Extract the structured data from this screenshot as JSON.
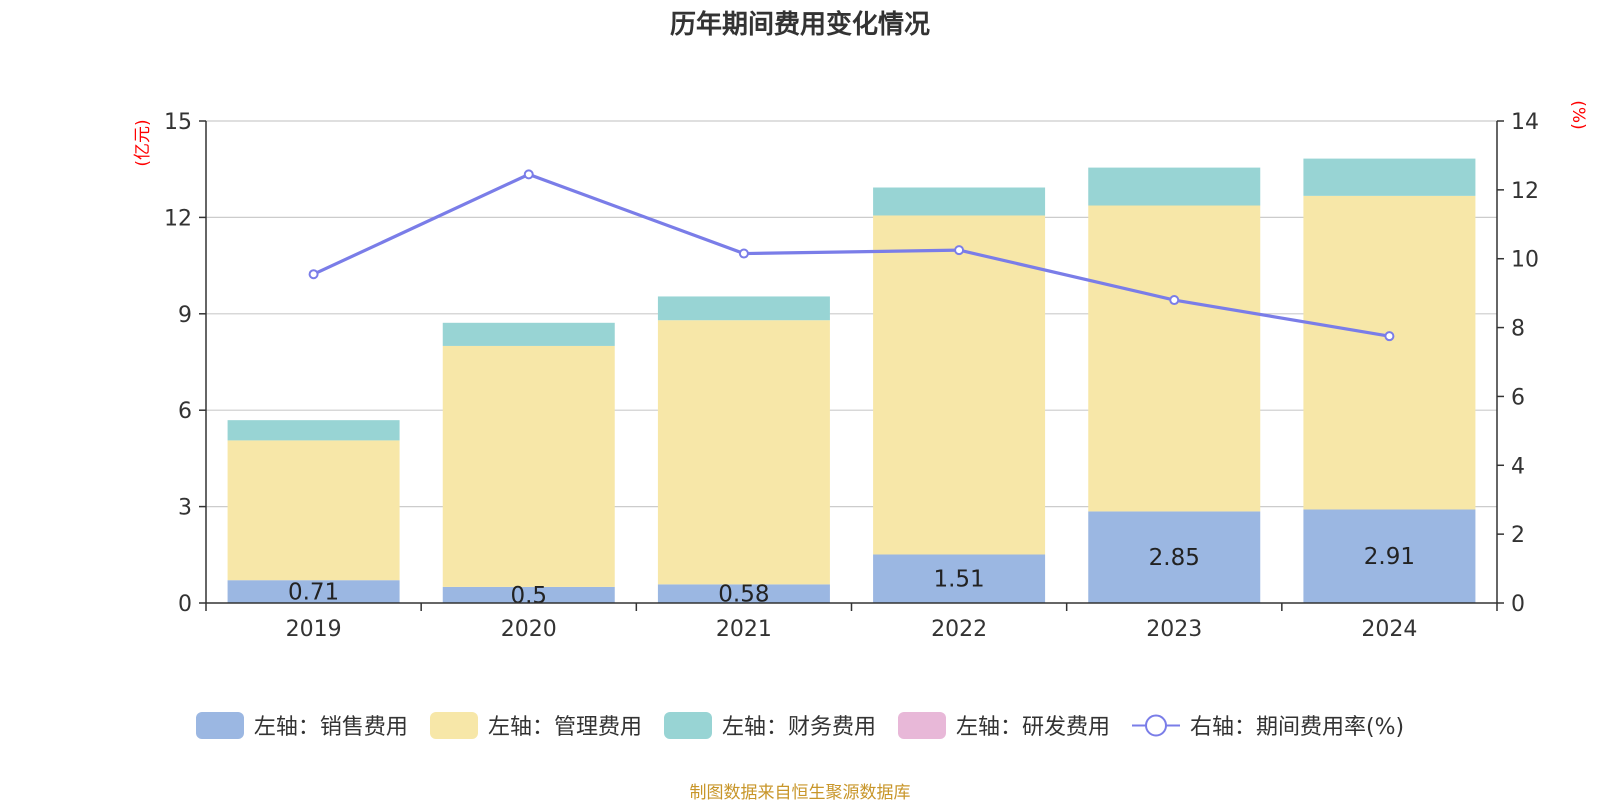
{
  "chart_data": {
    "type": "bar",
    "title": "历年期间费用变化情况",
    "categories": [
      "2019",
      "2020",
      "2021",
      "2022",
      "2023",
      "2024"
    ],
    "left_axis": {
      "unit_label": "(亿元)",
      "range": [
        0,
        15
      ],
      "ticks": [
        "0",
        "3",
        "6",
        "9",
        "12",
        "15"
      ]
    },
    "right_axis": {
      "unit_label": "(%)",
      "range": [
        0,
        14
      ],
      "ticks": [
        "0",
        "2",
        "4",
        "6",
        "8",
        "10",
        "12",
        "14"
      ]
    },
    "grid": true,
    "stacked": true,
    "series": [
      {
        "name": "左轴：销售费用",
        "axis": "left",
        "color": "#9bb7e2",
        "values": [
          0.71,
          0.5,
          0.58,
          1.51,
          2.85,
          2.91
        ],
        "data_labels": [
          "0.71",
          "0.5",
          "0.58",
          "1.51",
          "2.85",
          "2.91"
        ]
      },
      {
        "name": "左轴：管理费用",
        "axis": "left",
        "color": "#f7e7a8",
        "values": [
          4.35,
          7.5,
          8.22,
          10.55,
          9.52,
          9.76
        ]
      },
      {
        "name": "左轴：财务费用",
        "axis": "left",
        "color": "#98d4d4",
        "values": [
          0.63,
          0.72,
          0.74,
          0.87,
          1.18,
          1.16
        ]
      },
      {
        "name": "左轴：研发费用",
        "axis": "left",
        "color": "#e8b8d8",
        "values": [
          0,
          0,
          0,
          0,
          0,
          0
        ]
      },
      {
        "name": "右轴：期间费用率(%)",
        "axis": "right",
        "type": "line",
        "color": "#7a7de8",
        "values": [
          9.55,
          12.45,
          10.15,
          10.25,
          8.8,
          7.75
        ]
      }
    ],
    "legend_position": "bottom",
    "source": "制图数据来自恒生聚源数据库"
  }
}
